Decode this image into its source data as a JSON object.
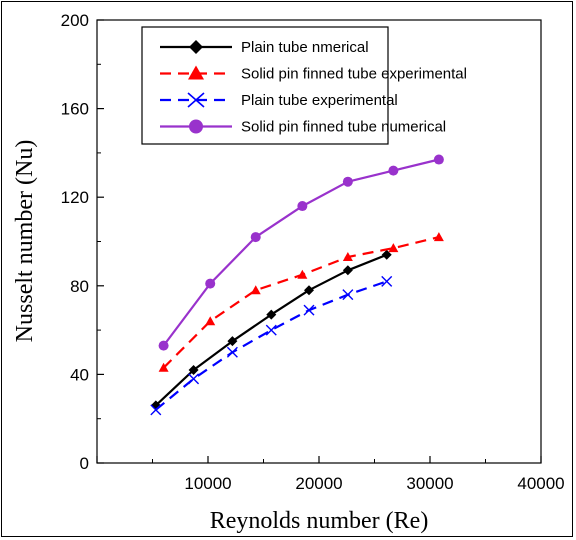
{
  "chart_data": {
    "type": "line",
    "title": "",
    "xlabel": "Reynolds number (Re)",
    "ylabel": "Nusselt number (Nu)",
    "xlim": [
      0,
      40000
    ],
    "ylim": [
      0,
      200
    ],
    "x_ticks": [
      10000,
      20000,
      30000,
      40000
    ],
    "y_ticks": [
      0,
      40,
      80,
      120,
      160,
      200
    ],
    "x_tick_labels": [
      "10000",
      "20000",
      "30000",
      "40000"
    ],
    "y_tick_labels": [
      "0",
      "40",
      "80",
      "120",
      "160",
      "200"
    ],
    "grid": false,
    "legend_position": "top-right",
    "series": [
      {
        "name": "Plain tube nmerical",
        "color": "#000000",
        "dash": "solid",
        "marker": "diamond",
        "x": [
          5300,
          8700,
          12200,
          15700,
          19100,
          22600,
          26100
        ],
        "y": [
          26,
          42,
          55,
          67,
          78,
          87,
          94
        ]
      },
      {
        "name": "Solid pin finned tube experimental",
        "color": "#ff0000",
        "dash": "dashed",
        "marker": "triangle",
        "x": [
          6000,
          10200,
          14300,
          18500,
          22600,
          26700,
          30800
        ],
        "y": [
          43,
          64,
          78,
          85,
          93,
          97,
          102
        ]
      },
      {
        "name": "Plain tube experimental",
        "color": "#0000ff",
        "dash": "dashed",
        "marker": "x",
        "x": [
          5300,
          8700,
          12200,
          15700,
          19100,
          22600,
          26100
        ],
        "y": [
          24,
          38,
          50,
          60,
          69,
          76,
          82
        ]
      },
      {
        "name": "Solid pin finned tube numerical",
        "color": "#9932cc",
        "dash": "solid",
        "marker": "circle",
        "x": [
          6000,
          10200,
          14300,
          18500,
          22600,
          26700,
          30800
        ],
        "y": [
          53,
          81,
          102,
          116,
          127,
          132,
          137
        ]
      }
    ]
  }
}
